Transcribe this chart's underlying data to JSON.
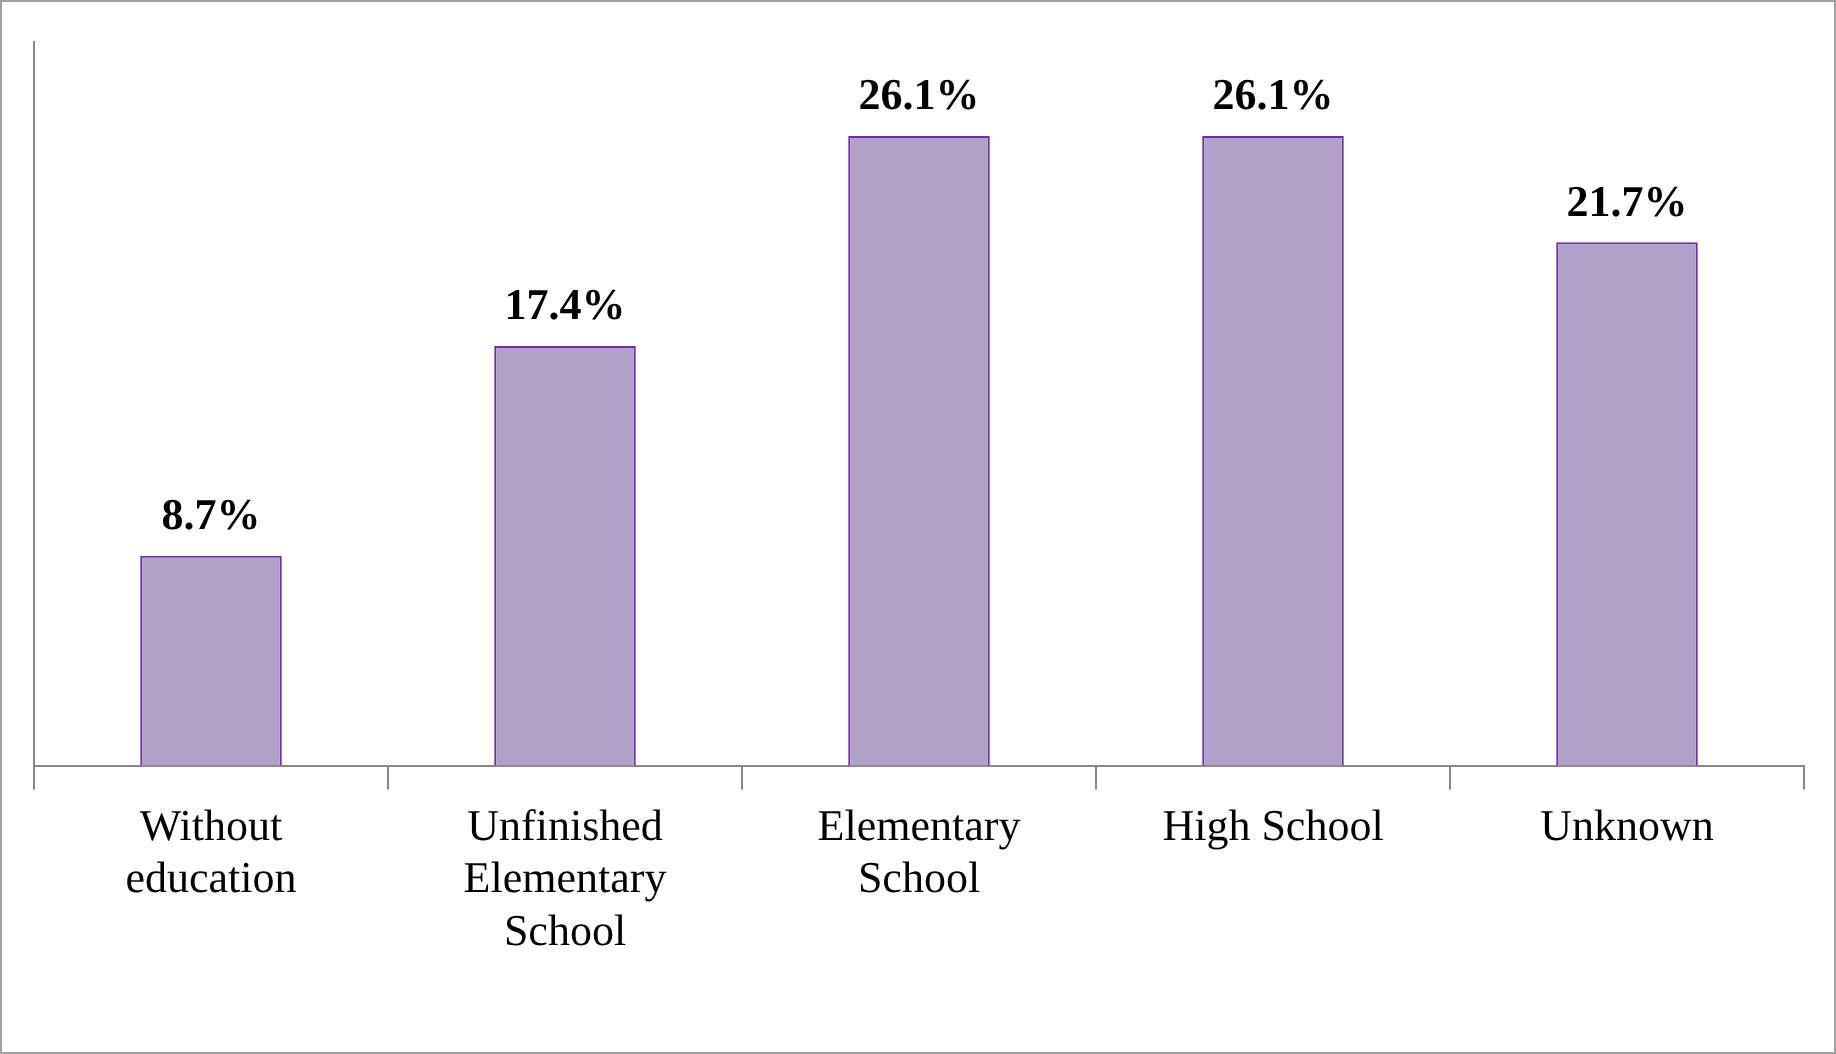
{
  "chart_data": {
    "type": "bar",
    "categories": [
      "Without education",
      "Unfinished Elementary School",
      "Elementary School",
      "High School",
      "Unknown"
    ],
    "values": [
      8.7,
      17.4,
      26.1,
      26.1,
      21.7
    ],
    "value_labels": [
      "8.7%",
      "17.4%",
      "26.1%",
      "26.1%",
      "21.7%"
    ],
    "color": "#b1a0c7",
    "ylim": [
      0,
      30
    ],
    "tick_labels": "x",
    "grid": false,
    "legend": false
  }
}
